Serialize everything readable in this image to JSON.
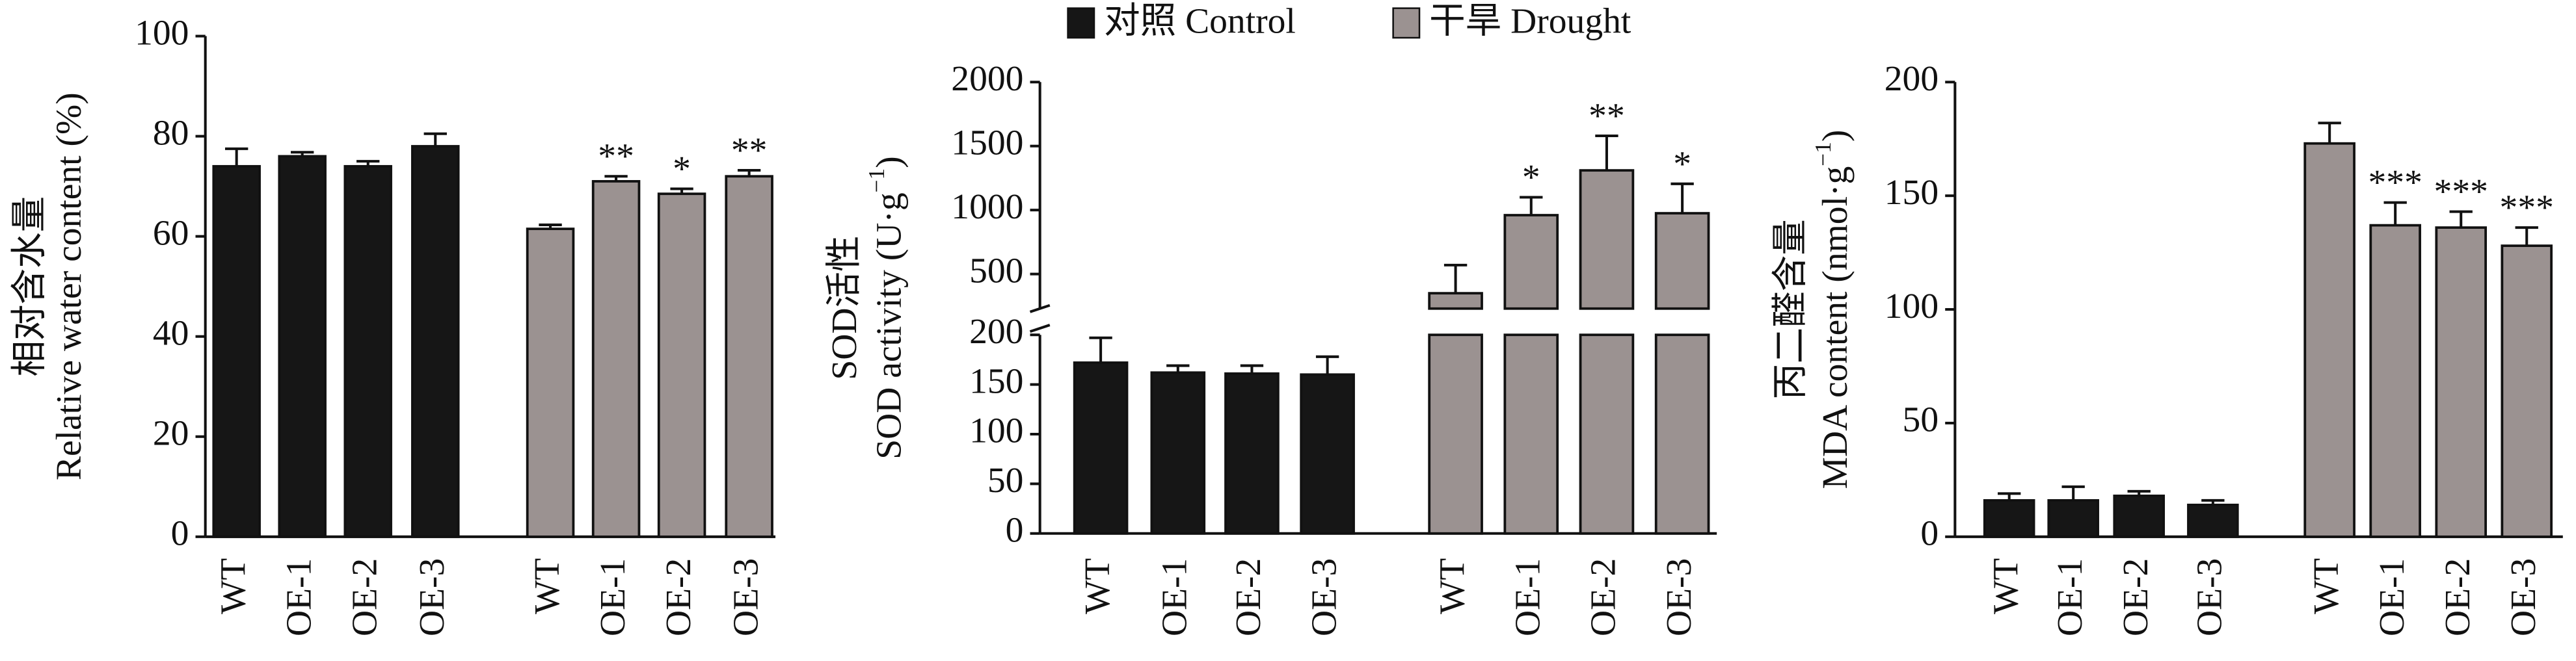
{
  "chart_data": [
    {
      "type": "bar",
      "ylabel_cn": "相对含水量",
      "ylabel_en": {
        "text": "Relative water content (%)"
      },
      "categories": [
        "WT",
        "OE-1",
        "OE-2",
        "OE-3"
      ],
      "series": [
        {
          "name": "对照 Control",
          "color": "#161616",
          "values": [
            74,
            76,
            74,
            78
          ],
          "errors": [
            3.5,
            0.8,
            1,
            2.5
          ]
        },
        {
          "name": "干旱 Drought",
          "color": "#9b9291",
          "values": [
            61.5,
            71,
            68.5,
            72
          ],
          "errors": [
            0.8,
            1,
            1,
            1.2
          ],
          "significance": [
            null,
            "**",
            "*",
            "**"
          ]
        }
      ],
      "ylim": [
        0,
        100
      ],
      "yticks": [
        0,
        20,
        40,
        60,
        80,
        100
      ]
    },
    {
      "type": "broken_bar",
      "ylabel_cn": "SOD活性",
      "ylabel_en": {
        "text": "SOD activity (U·g",
        "sup": "−1",
        "tail": ")"
      },
      "categories": [
        "WT",
        "OE-1",
        "OE-2",
        "OE-3"
      ],
      "series": [
        {
          "color": "#161616",
          "values": [
            172,
            162,
            161,
            160
          ],
          "errors": [
            25,
            7,
            8,
            18
          ]
        },
        {
          "color": "#9b9291",
          "values": [
            350,
            960,
            1310,
            975
          ],
          "errors": [
            220,
            140,
            270,
            230
          ],
          "significance": [
            null,
            "*",
            "**",
            "*"
          ]
        }
      ],
      "ylim": [
        0,
        200
      ],
      "yticks": [
        0,
        50,
        100,
        150,
        200
      ],
      "ylim_upper": [
        230,
        2000
      ],
      "yticks_upper": [
        500,
        1000,
        1500,
        2000
      ]
    },
    {
      "type": "bar",
      "ylabel_cn": "丙二醛含量",
      "ylabel_en": {
        "text": "MDA content (nmol·g",
        "sup": "−1",
        "tail": ")"
      },
      "categories": [
        "WT",
        "OE-1",
        "OE-2",
        "OE-3"
      ],
      "series": [
        {
          "color": "#161616",
          "values": [
            16,
            16,
            18,
            14
          ],
          "errors": [
            3,
            6,
            2,
            2
          ]
        },
        {
          "color": "#9b9291",
          "values": [
            173,
            137,
            136,
            128
          ],
          "errors": [
            9,
            10,
            7,
            8
          ],
          "significance": [
            null,
            "***",
            "***",
            "***"
          ]
        }
      ],
      "ylim": [
        0,
        200
      ],
      "yticks": [
        0,
        50,
        100,
        150,
        200
      ]
    }
  ]
}
